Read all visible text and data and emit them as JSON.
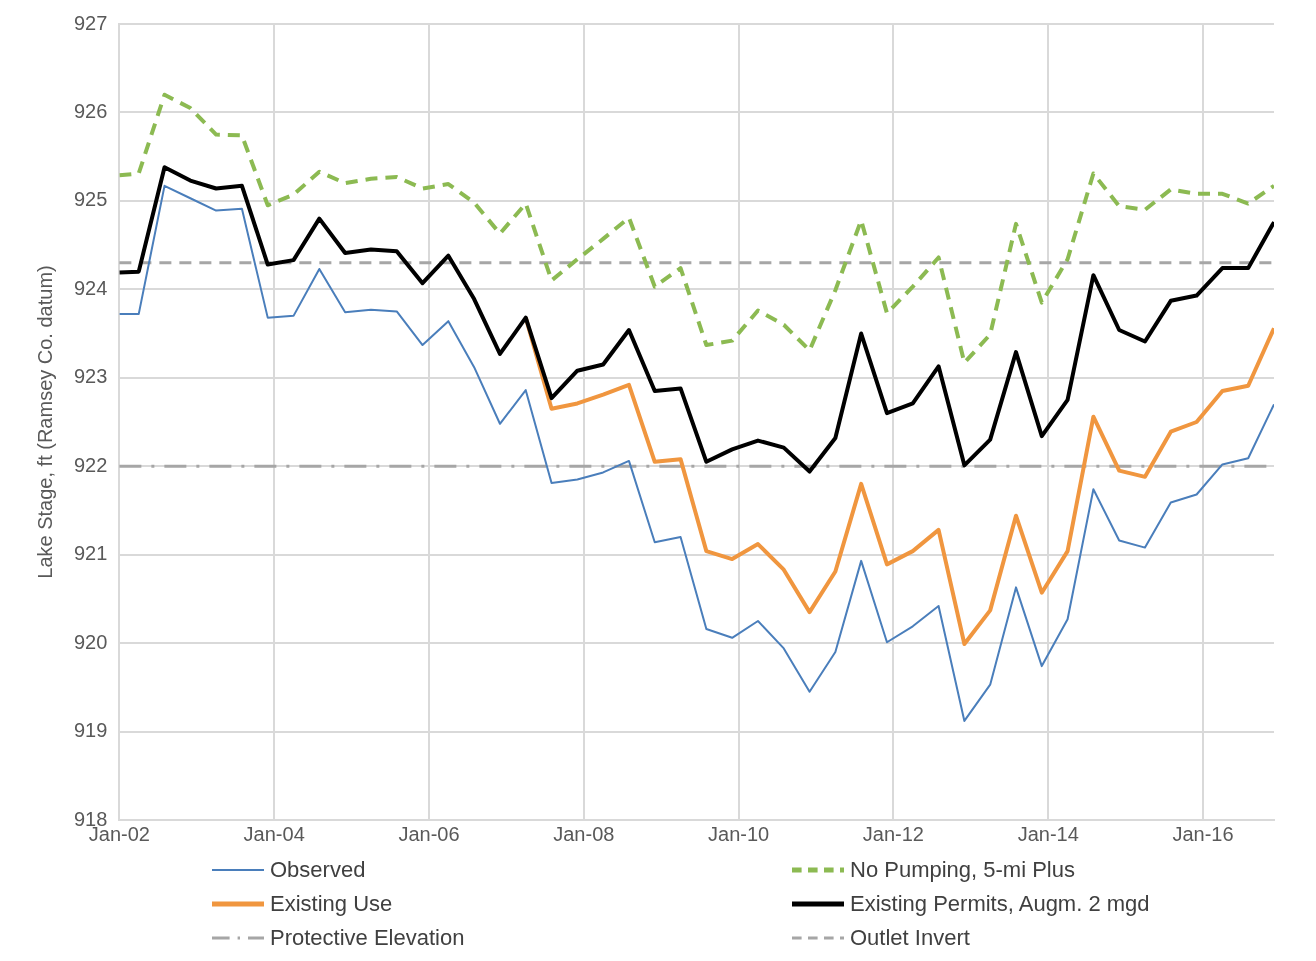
{
  "chart_data": {
    "type": "line",
    "ylabel": "Lake Stage, ft (Ramsey Co. datum)",
    "x": [
      "2002-01",
      "2002-04",
      "2002-08",
      "2002-12",
      "2003-04",
      "2003-08",
      "2003-12",
      "2004-04",
      "2004-08",
      "2004-12",
      "2005-04",
      "2005-08",
      "2005-12",
      "2006-04",
      "2006-08",
      "2006-12",
      "2007-04",
      "2007-08",
      "2007-12",
      "2008-04",
      "2008-08",
      "2008-12",
      "2009-04",
      "2009-08",
      "2009-12",
      "2010-04",
      "2010-08",
      "2010-12",
      "2011-04",
      "2011-08",
      "2011-12",
      "2012-04",
      "2012-08",
      "2012-12",
      "2013-04",
      "2013-08",
      "2013-12",
      "2014-04",
      "2014-08",
      "2014-12",
      "2015-04",
      "2015-08",
      "2015-12",
      "2016-04",
      "2016-08",
      "2016-12"
    ],
    "series": [
      {
        "name": "Observed",
        "color": "#4a7ebb",
        "values": [
          923.72,
          923.72,
          925.17,
          925.03,
          924.89,
          924.91,
          923.68,
          923.7,
          924.23,
          923.74,
          923.77,
          923.75,
          923.37,
          923.64,
          923.12,
          922.48,
          922.86,
          921.81,
          921.85,
          921.93,
          922.06,
          921.14,
          921.2,
          920.16,
          920.06,
          920.25,
          919.94,
          919.45,
          919.9,
          920.93,
          920.01,
          920.19,
          920.42,
          919.12,
          919.53,
          920.63,
          919.74,
          920.27,
          921.74,
          921.16,
          921.08,
          921.59,
          921.68,
          922.02,
          922.09,
          922.7
        ]
      },
      {
        "name": "No Pumping, 5-mi Plus",
        "color": "#8cba52",
        "line_style": "dashed",
        "values": [
          925.29,
          925.31,
          926.2,
          926.05,
          925.75,
          925.74,
          924.95,
          925.07,
          925.33,
          925.2,
          925.25,
          925.27,
          925.14,
          925.19,
          924.98,
          924.63,
          924.97,
          924.1,
          924.34,
          924.57,
          924.81,
          924.03,
          924.24,
          923.37,
          923.42,
          923.76,
          923.6,
          923.31,
          923.99,
          924.78,
          923.73,
          924.03,
          924.36,
          923.17,
          923.49,
          924.74,
          923.85,
          924.34,
          925.31,
          924.94,
          924.9,
          925.13,
          925.08,
          925.08,
          924.97,
          925.17
        ]
      },
      {
        "name": "Existing Use",
        "color": "#f0963f",
        "values": [
          null,
          null,
          null,
          null,
          null,
          null,
          null,
          null,
          null,
          null,
          null,
          null,
          null,
          null,
          null,
          null,
          923.68,
          922.65,
          922.71,
          922.81,
          922.92,
          922.05,
          922.08,
          921.04,
          920.95,
          921.12,
          920.83,
          920.35,
          920.81,
          921.8,
          920.89,
          921.04,
          921.28,
          919.99,
          920.37,
          921.44,
          920.57,
          921.04,
          922.56,
          921.95,
          921.88,
          922.39,
          922.5,
          922.85,
          922.91,
          923.56
        ]
      },
      {
        "name": "Existing Permits, Augm. 2 mgd",
        "color": "#000000",
        "values": [
          924.19,
          924.2,
          925.38,
          925.23,
          925.14,
          925.17,
          924.28,
          924.33,
          924.8,
          924.41,
          924.45,
          924.43,
          924.07,
          924.38,
          923.89,
          923.27,
          923.68,
          922.77,
          923.08,
          923.15,
          923.54,
          922.85,
          922.88,
          922.05,
          922.19,
          922.29,
          922.21,
          921.94,
          922.32,
          923.5,
          922.6,
          922.71,
          923.13,
          922.01,
          922.3,
          923.29,
          922.34,
          922.75,
          924.16,
          923.54,
          923.41,
          923.87,
          923.93,
          924.24,
          924.24,
          924.76
        ]
      }
    ],
    "ref_lines": [
      {
        "axis": "y",
        "value": 922,
        "label": "Protective Elevation",
        "color": "#a6a6a6",
        "line_style": "dashdot"
      },
      {
        "axis": "y",
        "value": 924.3,
        "label": "Outlet Invert",
        "color": "#a6a6a6",
        "line_style": "dashed"
      }
    ],
    "xlim": [
      "2002-01",
      "2016-12"
    ],
    "xticks": [
      {
        "value": "2002-01",
        "label": "Jan-02"
      },
      {
        "value": "2004-01",
        "label": "Jan-04"
      },
      {
        "value": "2006-01",
        "label": "Jan-06"
      },
      {
        "value": "2008-01",
        "label": "Jan-08"
      },
      {
        "value": "2010-01",
        "label": "Jan-10"
      },
      {
        "value": "2012-01",
        "label": "Jan-12"
      },
      {
        "value": "2014-01",
        "label": "Jan-14"
      },
      {
        "value": "2016-01",
        "label": "Jan-16"
      }
    ],
    "ylim": [
      918,
      927
    ],
    "yticks": [
      918,
      919,
      920,
      921,
      922,
      923,
      924,
      925,
      926,
      927
    ],
    "grid": true,
    "legend": "bottom",
    "marker": "none"
  }
}
